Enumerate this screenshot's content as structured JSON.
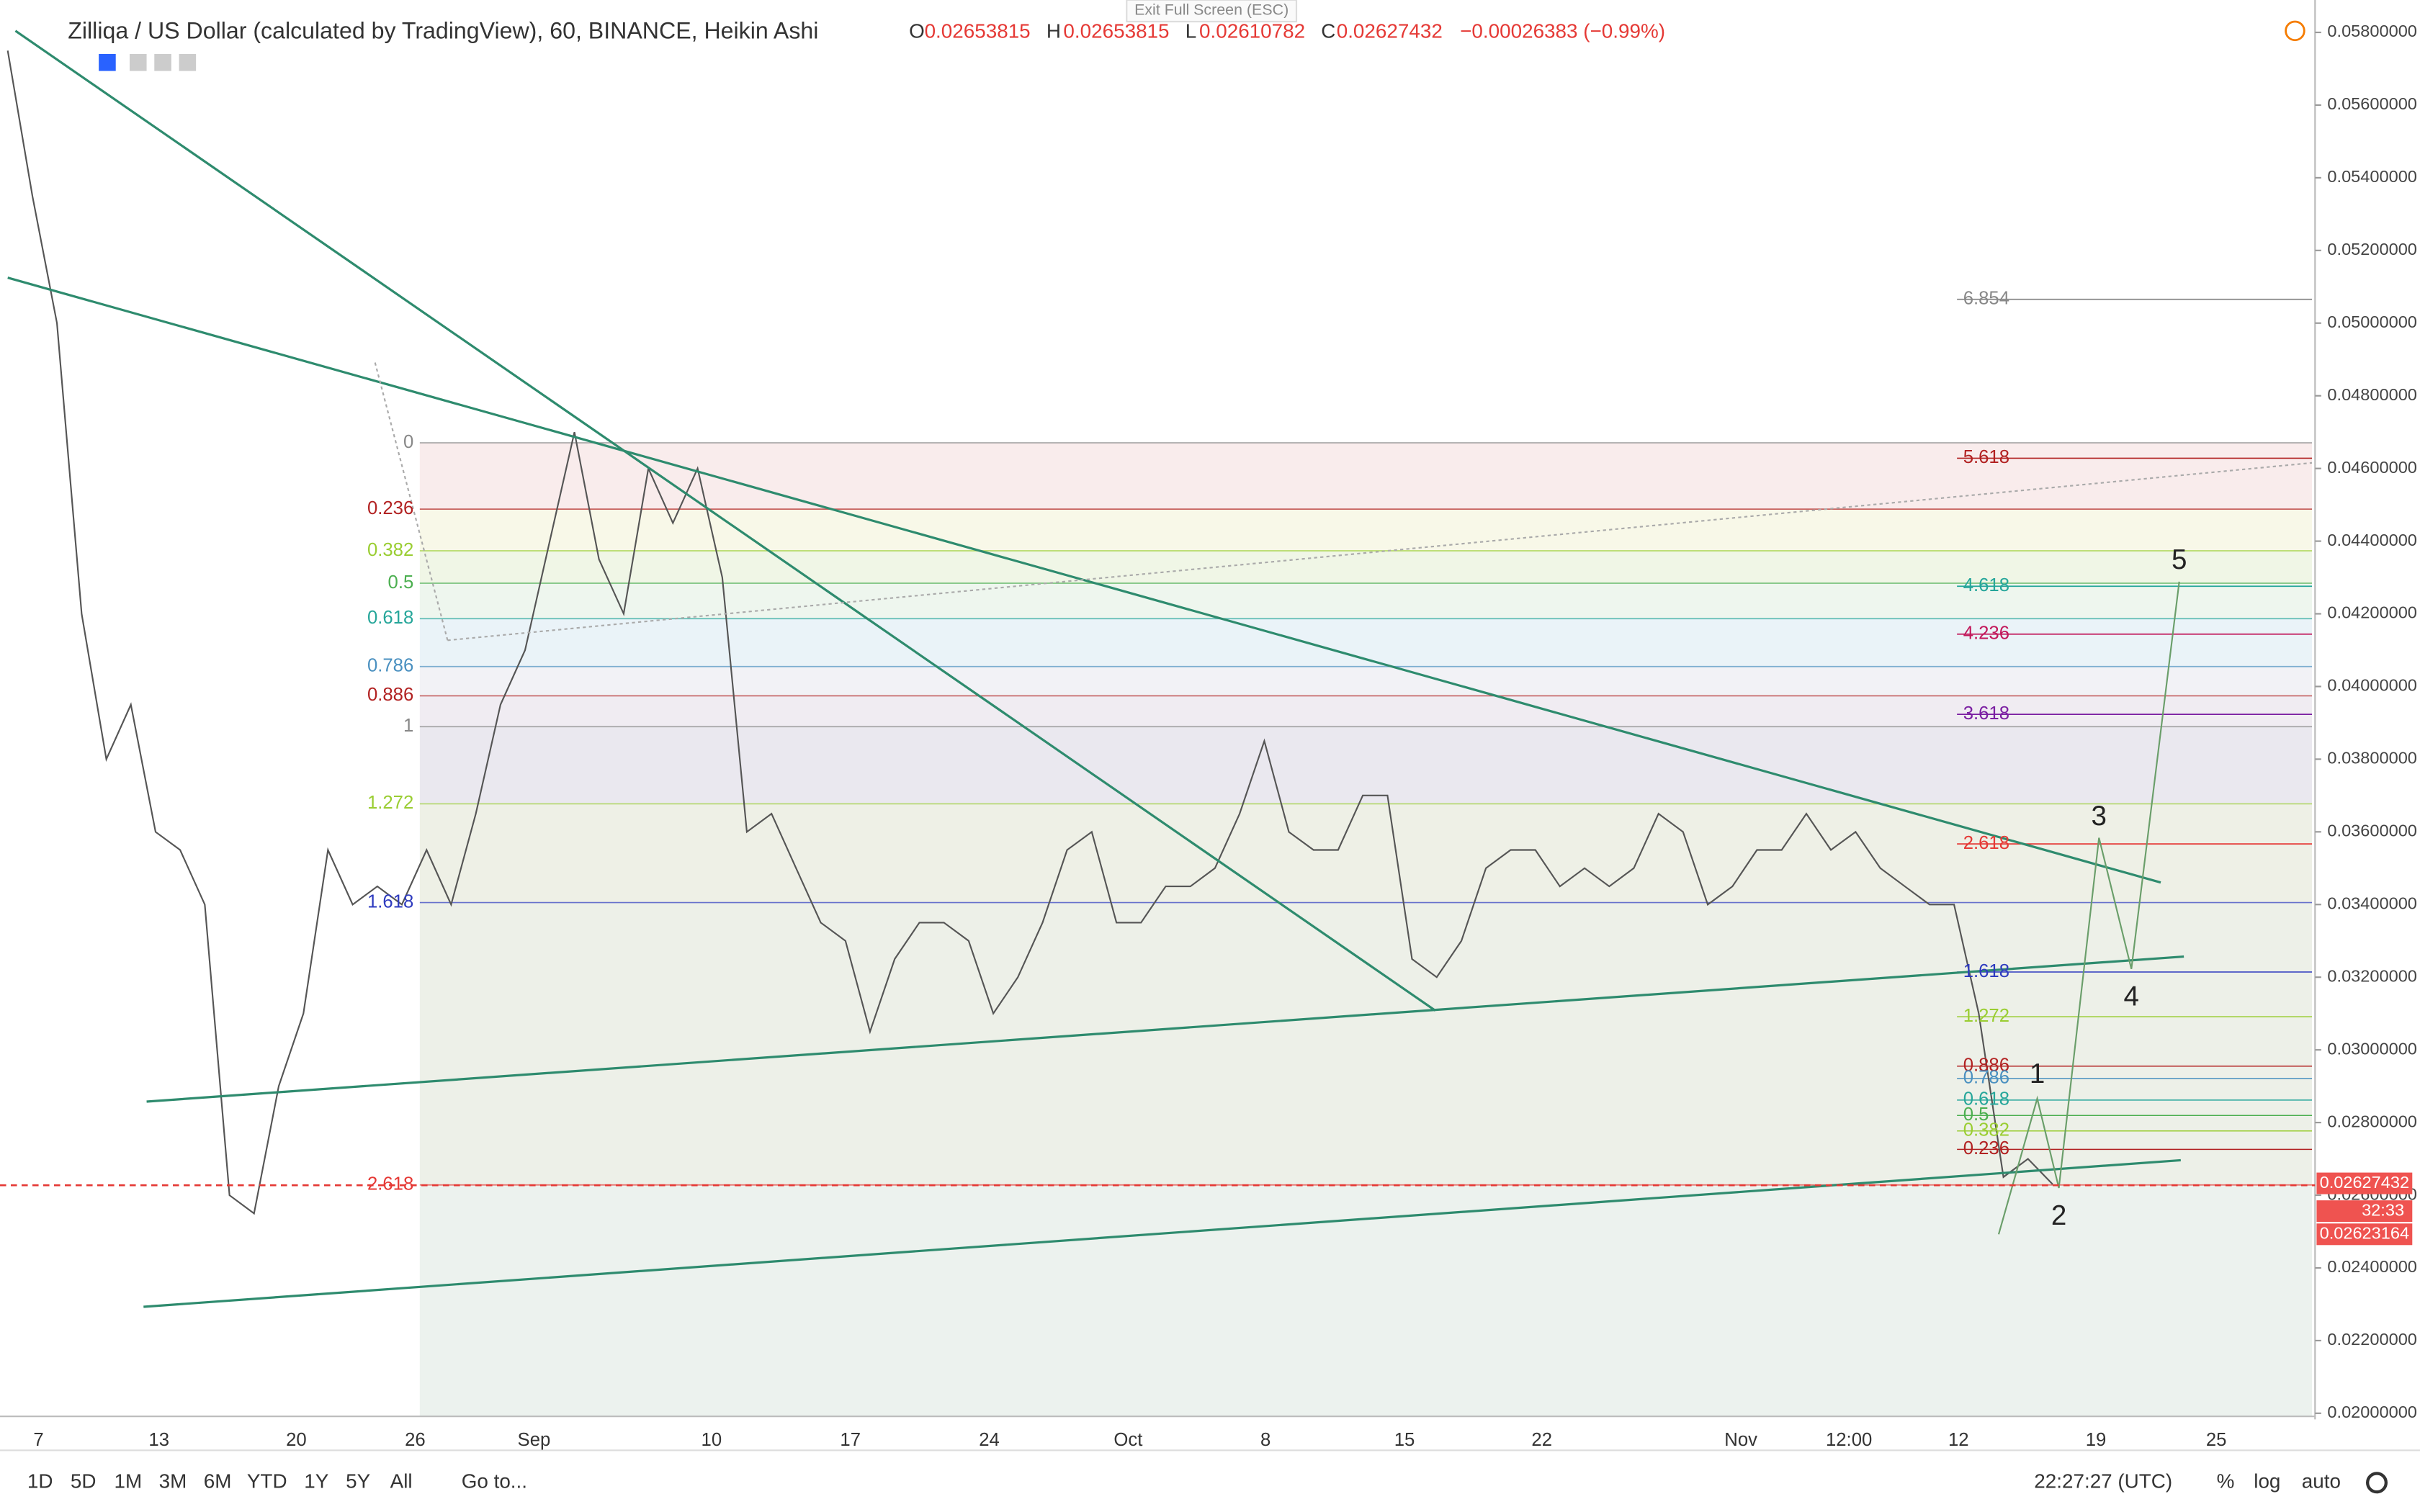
{
  "header": {
    "symbol": "Zilliqa / US Dollar (calculated by TradingView), 60, BINANCE, Heikin Ashi",
    "o_label": "O",
    "o": "0.02653815",
    "h_label": "H",
    "h": "0.02653815",
    "l_label": "L",
    "l": "0.02610782",
    "c_label": "C",
    "c": "0.02627432",
    "change": "−0.00026383 (−0.99%)"
  },
  "tooltip": "Exit Full Screen (ESC)",
  "chart_data": {
    "type": "line",
    "color": "#555555",
    "values": [
      0.0575,
      0.0535,
      0.05,
      0.042,
      0.038,
      0.0395,
      0.036,
      0.0355,
      0.034,
      0.026,
      0.0255,
      0.029,
      0.031,
      0.0355,
      0.034,
      0.0345,
      0.034,
      0.0355,
      0.034,
      0.0365,
      0.0395,
      0.041,
      0.044,
      0.047,
      0.0435,
      0.042,
      0.046,
      0.0445,
      0.046,
      0.043,
      0.036,
      0.0365,
      0.035,
      0.0335,
      0.033,
      0.0305,
      0.0325,
      0.0335,
      0.0335,
      0.033,
      0.031,
      0.032,
      0.0335,
      0.0355,
      0.036,
      0.0335,
      0.0335,
      0.0345,
      0.0345,
      0.035,
      0.0365,
      0.0385,
      0.036,
      0.0355,
      0.0355,
      0.037,
      0.037,
      0.0325,
      0.032,
      0.033,
      0.035,
      0.0355,
      0.0355,
      0.0345,
      0.035,
      0.0345,
      0.035,
      0.0365,
      0.036,
      0.034,
      0.0345,
      0.0355,
      0.0355,
      0.0365,
      0.0355,
      0.036,
      0.035,
      0.0345,
      0.034,
      0.034,
      0.031,
      0.0265,
      0.027,
      0.0263
    ],
    "ylim": [
      0.02,
      0.058
    ],
    "yticks": [
      {
        "value": 0.02,
        "label": "0.02000000"
      },
      {
        "value": 0.022,
        "label": "0.02200000"
      },
      {
        "value": 0.024,
        "label": "0.02400000"
      },
      {
        "value": 0.026,
        "label": "0.02600000"
      },
      {
        "value": 0.028,
        "label": "0.02800000"
      },
      {
        "value": 0.03,
        "label": "0.03000000"
      },
      {
        "value": 0.032,
        "label": "0.03200000"
      },
      {
        "value": 0.034,
        "label": "0.03400000"
      },
      {
        "value": 0.036,
        "label": "0.03600000"
      },
      {
        "value": 0.038,
        "label": "0.03800000"
      },
      {
        "value": 0.04,
        "label": "0.04000000"
      },
      {
        "value": 0.042,
        "label": "0.04200000"
      },
      {
        "value": 0.044,
        "label": "0.04400000"
      },
      {
        "value": 0.046,
        "label": "0.04600000"
      },
      {
        "value": 0.048,
        "label": "0.04800000"
      },
      {
        "value": 0.05,
        "label": "0.05000000"
      },
      {
        "value": 0.052,
        "label": "0.05200000"
      },
      {
        "value": 0.054,
        "label": "0.05400000"
      },
      {
        "value": 0.056,
        "label": "0.05600000"
      },
      {
        "value": 0.058,
        "label": "0.05800000"
      }
    ],
    "x_labels": [
      "7",
      "13",
      "20",
      "26",
      "Sep",
      "10",
      "17",
      "24",
      "Oct",
      "8",
      "15",
      "22",
      "Nov",
      "12:00",
      "12",
      "19",
      "25"
    ],
    "price_tags": [
      {
        "value": 0.02627432,
        "label": "0.02627432"
      },
      {
        "value": 0.02623164,
        "label": "0.02623164"
      }
    ],
    "countdown": "32:33"
  },
  "fib_main": [
    {
      "level": 0,
      "color": "#888888"
    },
    {
      "level": 0.236,
      "color": "#b22222"
    },
    {
      "level": 0.382,
      "color": "#9acd32"
    },
    {
      "level": 0.5,
      "color": "#4caf50"
    },
    {
      "level": 0.618,
      "color": "#26a69a"
    },
    {
      "level": 0.786,
      "color": "#4a90c0"
    },
    {
      "level": 0.886,
      "color": "#b22222"
    },
    {
      "level": 1,
      "color": "#888888"
    },
    {
      "level": 1.272,
      "color": "#9acd32"
    },
    {
      "level": 1.618,
      "color": "#2e3bbf"
    },
    {
      "level": 2.618,
      "color": "#e53935"
    }
  ],
  "fib_ext": [
    {
      "level": 6.854,
      "color": "#888888"
    },
    {
      "level": 5.618,
      "color": "#b22222"
    },
    {
      "level": 4.618,
      "color": "#26a69a"
    },
    {
      "level": 4.236,
      "color": "#c2185b"
    },
    {
      "level": 3.618,
      "color": "#7b1fa2"
    },
    {
      "level": 2.618,
      "color": "#e53935"
    }
  ],
  "fib_small": [
    {
      "level": 1.618,
      "color": "#2e3bbf"
    },
    {
      "level": 1.272,
      "color": "#9acd32"
    },
    {
      "level": 0.886,
      "color": "#b22222"
    },
    {
      "level": 0.786,
      "color": "#4a90c0"
    },
    {
      "level": 0.618,
      "color": "#26a69a"
    },
    {
      "level": 0.5,
      "color": "#4caf50"
    },
    {
      "level": 0.382,
      "color": "#9acd32"
    },
    {
      "level": 0.236,
      "color": "#b22222"
    }
  ],
  "waves": [
    "1",
    "2",
    "3",
    "4",
    "5"
  ],
  "toolbar": {
    "ranges": [
      "1D",
      "5D",
      "1M",
      "3M",
      "6M",
      "YTD",
      "1Y",
      "5Y",
      "All"
    ],
    "goto": "Go to...",
    "clock": "22:27:27 (UTC)",
    "percent": "%",
    "log": "log",
    "auto": "auto"
  }
}
